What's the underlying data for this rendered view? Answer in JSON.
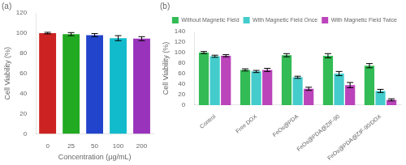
{
  "chart_data": [
    {
      "type": "bar",
      "title": "(a)",
      "categories": [
        "0",
        "25",
        "50",
        "100",
        "200"
      ],
      "values": [
        100,
        99,
        98,
        95,
        94.5
      ],
      "errors": [
        0.8,
        1.5,
        1.5,
        2.5,
        2.0
      ],
      "colors": [
        "#cc2222",
        "#22aa22",
        "#2244cc",
        "#11bbcc",
        "#9933bb"
      ],
      "xlabel": "Concentration (μg/mL)",
      "ylabel": "Cell Viability (%)",
      "ylim": [
        0,
        120
      ],
      "yticks": [
        0,
        20,
        40,
        60,
        80,
        100,
        120
      ],
      "grid": false
    },
    {
      "type": "bar",
      "title": "(b)",
      "categories": [
        "Control",
        "Free DOX",
        "FeOs@PDA",
        "FeOs@PDA@ZIF-90",
        "FeOs@PDA@ZIF-90/DOX"
      ],
      "series": [
        {
          "name": "Without Magnetic Field",
          "color": "#33bb55",
          "values": [
            100,
            67,
            95,
            94,
            75
          ],
          "errors": [
            2,
            2,
            3,
            4,
            4
          ]
        },
        {
          "name": "With Magnetic Field Once",
          "color": "#44cccc",
          "values": [
            93,
            64,
            53,
            60,
            27
          ],
          "errors": [
            2,
            2,
            2,
            4,
            3
          ]
        },
        {
          "name": "With Magnetic Field Twice",
          "color": "#bb44bb",
          "values": [
            94,
            67,
            31,
            38,
            10
          ],
          "errors": [
            2,
            3,
            3,
            5,
            2
          ]
        }
      ],
      "ylabel": "Cell Viability (%)",
      "ylim": [
        0,
        140
      ],
      "yticks": [
        0,
        20,
        40,
        60,
        80,
        100,
        120,
        140
      ],
      "legend": "upper right",
      "grid": false
    }
  ]
}
